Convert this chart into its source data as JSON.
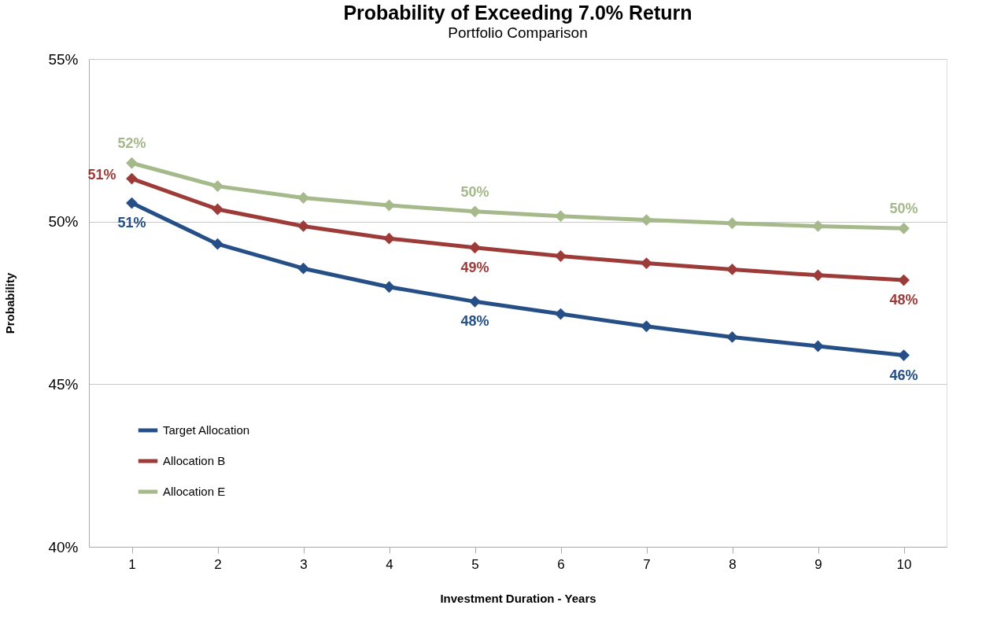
{
  "chart_data": {
    "type": "line",
    "title": "Probability of Exceeding 7.0% Return",
    "subtitle": "Portfolio Comparison",
    "xlabel": "Investment Duration - Years",
    "ylabel": "Probability",
    "categories": [
      "1",
      "2",
      "3",
      "4",
      "5",
      "6",
      "7",
      "8",
      "9",
      "10"
    ],
    "series": [
      {
        "name": "Target Allocation",
        "color": "#254f86",
        "values": [
          50.57,
          49.31,
          48.56,
          47.99,
          47.54,
          47.16,
          46.78,
          46.45,
          46.17,
          45.89
        ],
        "value_labels": [
          "51%",
          null,
          null,
          null,
          "48%",
          null,
          null,
          null,
          null,
          "46%"
        ]
      },
      {
        "name": "Allocation B",
        "color": "#9c3b38",
        "values": [
          51.32,
          50.38,
          49.86,
          49.48,
          49.2,
          48.94,
          48.72,
          48.53,
          48.35,
          48.2
        ],
        "value_labels": [
          "51%",
          null,
          null,
          null,
          "49%",
          null,
          null,
          null,
          null,
          "48%"
        ]
      },
      {
        "name": "Allocation E",
        "color": "#a5b98b",
        "values": [
          51.8,
          51.09,
          50.73,
          50.5,
          50.31,
          50.17,
          50.05,
          49.95,
          49.86,
          49.79
        ],
        "value_labels": [
          "52%",
          null,
          null,
          null,
          "50%",
          null,
          null,
          null,
          null,
          "50%"
        ]
      }
    ],
    "ylim": [
      40,
      55
    ],
    "yticks": [
      {
        "value": 40,
        "label": "40%"
      },
      {
        "value": 45,
        "label": "45%"
      },
      {
        "value": 50,
        "label": "50%"
      },
      {
        "value": 55,
        "label": "55%"
      }
    ],
    "grid": "y",
    "legend": "bottom left",
    "marker": "diamond",
    "line_style": "solid"
  }
}
